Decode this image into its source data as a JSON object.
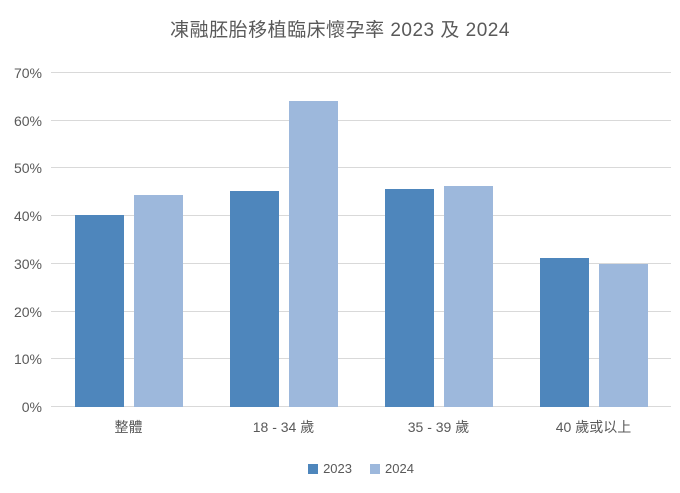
{
  "chart_data": {
    "type": "bar",
    "title": "凍融胚胎移植臨床懷孕率 2023 及 2024",
    "categories": [
      "整體",
      "18 - 34 歲",
      "35 - 39 歲",
      "40 歲或以上"
    ],
    "series": [
      {
        "name": "2023",
        "color": "#4e86bc",
        "values": [
          40.3,
          45.3,
          45.7,
          31.3
        ]
      },
      {
        "name": "2024",
        "color": "#9db8dc",
        "values": [
          44.5,
          64.1,
          46.4,
          29.9
        ]
      }
    ],
    "xlabel": "",
    "ylabel": "",
    "ylim": [
      0,
      70
    ],
    "ytick_step": 10,
    "ytick_labels": [
      "0%",
      "10%",
      "20%",
      "30%",
      "40%",
      "50%",
      "60%",
      "70%"
    ],
    "grid": true,
    "legend_position": "bottom"
  },
  "colors": {
    "title_text": "#595959",
    "axis_text": "#595959",
    "gridline": "#d9d9d9",
    "background": "#ffffff",
    "series_2023": "#4e86bc",
    "series_2024": "#9db8dc"
  }
}
